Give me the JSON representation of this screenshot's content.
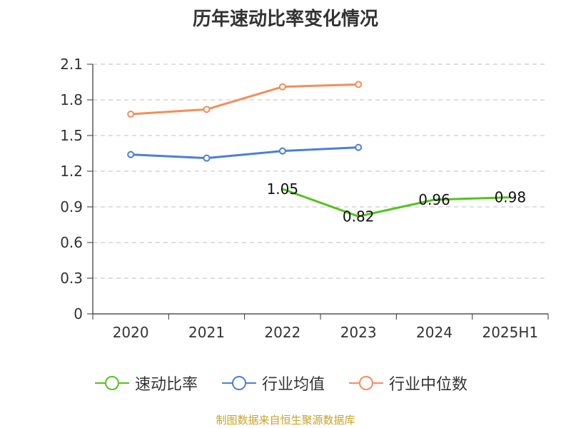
{
  "chart_data": {
    "type": "line",
    "title": "历年速动比率变化情况",
    "categories": [
      "2020",
      "2021",
      "2022",
      "2023",
      "2024",
      "2025H1"
    ],
    "y_ticks": [
      "0",
      "0.3",
      "0.6",
      "0.9",
      "1.2",
      "1.5",
      "1.8",
      "2.1"
    ],
    "ylim": [
      0,
      2.1
    ],
    "grid": true,
    "legend_position": "bottom",
    "series": [
      {
        "name": "速动比率",
        "color": "#52c41a",
        "values": [
          null,
          null,
          1.05,
          0.82,
          0.96,
          0.98
        ],
        "labels": [
          null,
          null,
          "1.05",
          "0.82",
          "0.96",
          "0.98"
        ]
      },
      {
        "name": "行业均值",
        "color": "#4a7fdb",
        "values": [
          1.34,
          1.31,
          1.37,
          1.4,
          null,
          null
        ]
      },
      {
        "name": "行业中位数",
        "color": "#f58d58",
        "values": [
          1.68,
          1.72,
          1.91,
          1.93,
          null,
          null
        ]
      }
    ]
  },
  "source": "制图数据来自恒生聚源数据库"
}
